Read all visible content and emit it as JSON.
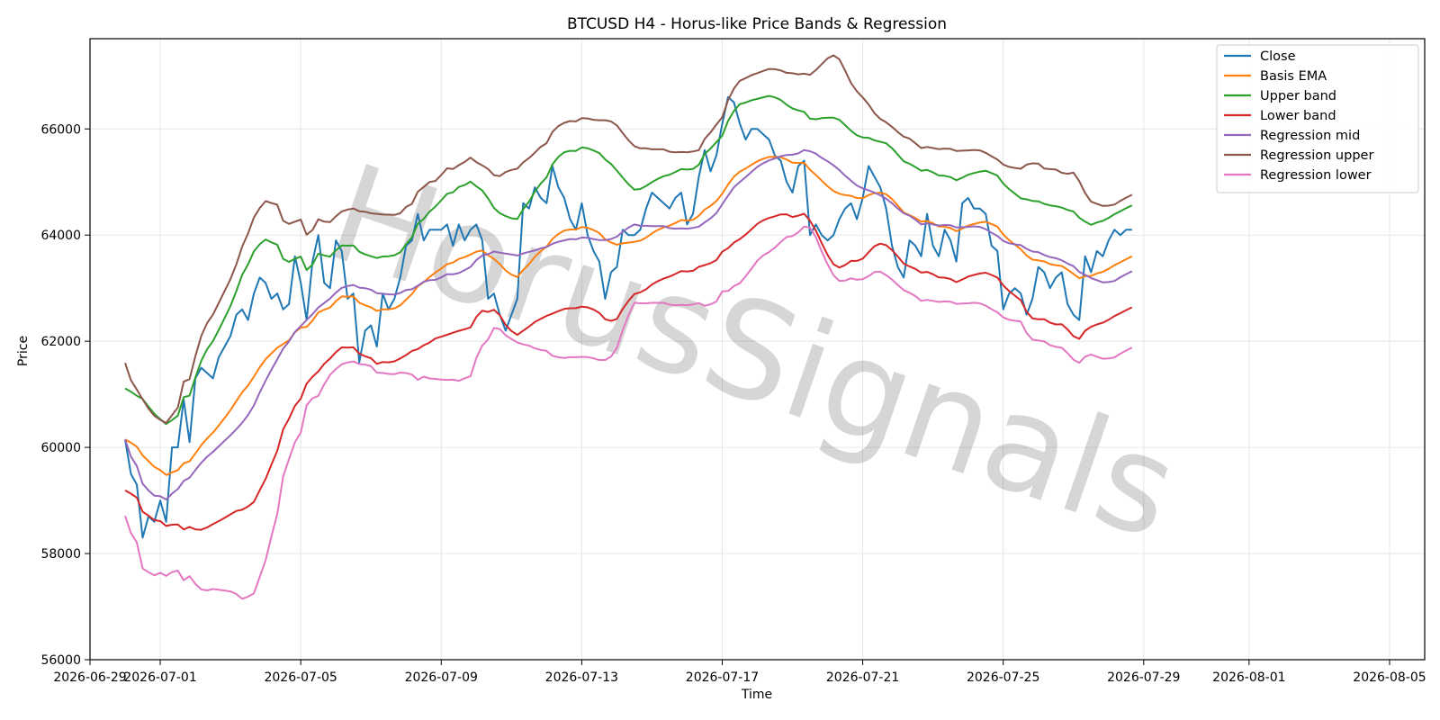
{
  "chart_data": {
    "type": "line",
    "title": "BTCUSD H4 - Horus-like Price Bands & Regression",
    "xlabel": "Time",
    "ylabel": "Price",
    "xlim": [
      "2026-06-29",
      "2026-08-06"
    ],
    "ylim": [
      56000,
      67700
    ],
    "grid": true,
    "legend": "top-right",
    "watermark": "HorusSignals",
    "x_ticks": [
      {
        "date": "2026-06-29",
        "label": "2026-06-29"
      },
      {
        "date": "2026-07-01",
        "label": "2026-07-01"
      },
      {
        "date": "2026-07-05",
        "label": "2026-07-05"
      },
      {
        "date": "2026-07-09",
        "label": "2026-07-09"
      },
      {
        "date": "2026-07-13",
        "label": "2026-07-13"
      },
      {
        "date": "2026-07-17",
        "label": "2026-07-17"
      },
      {
        "date": "2026-07-21",
        "label": "2026-07-21"
      },
      {
        "date": "2026-07-25",
        "label": "2026-07-25"
      },
      {
        "date": "2026-07-29",
        "label": "2026-07-29"
      },
      {
        "date": "2026-08-01",
        "label": "2026-08-01"
      },
      {
        "date": "2026-08-05",
        "label": "2026-08-05"
      }
    ],
    "y_ticks": [
      56000,
      58000,
      60000,
      62000,
      64000,
      66000
    ],
    "series": [
      {
        "name": "Close",
        "color": "#1f77b4",
        "points": [
          [
            "2026-06-30 00:00",
            60150
          ],
          [
            "2026-06-30 04:00",
            59500
          ],
          [
            "2026-06-30 08:00",
            59300
          ],
          [
            "2026-06-30 12:00",
            58300
          ],
          [
            "2026-06-30 16:00",
            58700
          ],
          [
            "2026-06-30 20:00",
            58600
          ],
          [
            "2026-07-01 00:00",
            59000
          ],
          [
            "2026-07-01 04:00",
            58600
          ],
          [
            "2026-07-01 08:00",
            60000
          ],
          [
            "2026-07-01 12:00",
            60000
          ],
          [
            "2026-07-01 16:00",
            60900
          ],
          [
            "2026-07-01 20:00",
            60100
          ],
          [
            "2026-07-02 00:00",
            61300
          ],
          [
            "2026-07-02 04:00",
            61500
          ],
          [
            "2026-07-02 08:00",
            61400
          ],
          [
            "2026-07-02 12:00",
            61300
          ],
          [
            "2026-07-02 16:00",
            61700
          ],
          [
            "2026-07-02 20:00",
            61900
          ],
          [
            "2026-07-03 00:00",
            62100
          ],
          [
            "2026-07-03 04:00",
            62500
          ],
          [
            "2026-07-03 08:00",
            62600
          ],
          [
            "2026-07-03 12:00",
            62400
          ],
          [
            "2026-07-03 16:00",
            62900
          ],
          [
            "2026-07-03 20:00",
            63200
          ],
          [
            "2026-07-04 00:00",
            63100
          ],
          [
            "2026-07-04 04:00",
            62800
          ],
          [
            "2026-07-04 08:00",
            62900
          ],
          [
            "2026-07-04 12:00",
            62600
          ],
          [
            "2026-07-04 16:00",
            62700
          ],
          [
            "2026-07-04 20:00",
            63600
          ],
          [
            "2026-07-05 00:00",
            63100
          ],
          [
            "2026-07-05 04:00",
            62400
          ],
          [
            "2026-07-05 08:00",
            63500
          ],
          [
            "2026-07-05 12:00",
            64000
          ],
          [
            "2026-07-05 16:00",
            63100
          ],
          [
            "2026-07-05 20:00",
            63000
          ],
          [
            "2026-07-06 00:00",
            63900
          ],
          [
            "2026-07-06 04:00",
            63700
          ],
          [
            "2026-07-06 08:00",
            62800
          ],
          [
            "2026-07-06 12:00",
            62900
          ],
          [
            "2026-07-06 16:00",
            61600
          ],
          [
            "2026-07-06 20:00",
            62200
          ],
          [
            "2026-07-07 00:00",
            62300
          ],
          [
            "2026-07-07 04:00",
            61900
          ],
          [
            "2026-07-07 08:00",
            62900
          ],
          [
            "2026-07-07 12:00",
            62600
          ],
          [
            "2026-07-07 16:00",
            62800
          ],
          [
            "2026-07-07 20:00",
            63200
          ],
          [
            "2026-07-08 00:00",
            63800
          ],
          [
            "2026-07-08 04:00",
            63900
          ],
          [
            "2026-07-08 08:00",
            64400
          ],
          [
            "2026-07-08 12:00",
            63900
          ],
          [
            "2026-07-08 16:00",
            64100
          ],
          [
            "2026-07-08 20:00",
            64100
          ],
          [
            "2026-07-09 00:00",
            64100
          ],
          [
            "2026-07-09 04:00",
            64200
          ],
          [
            "2026-07-09 08:00",
            63800
          ],
          [
            "2026-07-09 12:00",
            64200
          ],
          [
            "2026-07-09 16:00",
            63900
          ],
          [
            "2026-07-09 20:00",
            64100
          ],
          [
            "2026-07-10 00:00",
            64200
          ],
          [
            "2026-07-10 04:00",
            63900
          ],
          [
            "2026-07-10 08:00",
            62800
          ],
          [
            "2026-07-10 12:00",
            62900
          ],
          [
            "2026-07-10 16:00",
            62500
          ],
          [
            "2026-07-10 20:00",
            62200
          ],
          [
            "2026-07-11 00:00",
            62500
          ],
          [
            "2026-07-11 04:00",
            62800
          ],
          [
            "2026-07-11 08:00",
            64600
          ],
          [
            "2026-07-11 12:00",
            64500
          ],
          [
            "2026-07-11 16:00",
            64900
          ],
          [
            "2026-07-11 20:00",
            64700
          ],
          [
            "2026-07-12 00:00",
            64600
          ],
          [
            "2026-07-12 04:00",
            65300
          ],
          [
            "2026-07-12 08:00",
            64900
          ],
          [
            "2026-07-12 12:00",
            64700
          ],
          [
            "2026-07-12 16:00",
            64300
          ],
          [
            "2026-07-12 20:00",
            64100
          ],
          [
            "2026-07-13 00:00",
            64600
          ],
          [
            "2026-07-13 04:00",
            64000
          ],
          [
            "2026-07-13 08:00",
            63700
          ],
          [
            "2026-07-13 12:00",
            63500
          ],
          [
            "2026-07-13 16:00",
            62800
          ],
          [
            "2026-07-13 20:00",
            63300
          ],
          [
            "2026-07-14 00:00",
            63400
          ],
          [
            "2026-07-14 04:00",
            64100
          ],
          [
            "2026-07-14 08:00",
            64000
          ],
          [
            "2026-07-14 12:00",
            64000
          ],
          [
            "2026-07-14 16:00",
            64100
          ],
          [
            "2026-07-14 20:00",
            64500
          ],
          [
            "2026-07-15 00:00",
            64800
          ],
          [
            "2026-07-15 04:00",
            64700
          ],
          [
            "2026-07-15 08:00",
            64600
          ],
          [
            "2026-07-15 12:00",
            64500
          ],
          [
            "2026-07-15 16:00",
            64700
          ],
          [
            "2026-07-15 20:00",
            64800
          ],
          [
            "2026-07-16 00:00",
            64200
          ],
          [
            "2026-07-16 04:00",
            64400
          ],
          [
            "2026-07-16 08:00",
            65100
          ],
          [
            "2026-07-16 12:00",
            65600
          ],
          [
            "2026-07-16 16:00",
            65200
          ],
          [
            "2026-07-16 20:00",
            65500
          ],
          [
            "2026-07-17 00:00",
            66100
          ],
          [
            "2026-07-17 04:00",
            66600
          ],
          [
            "2026-07-17 08:00",
            66500
          ],
          [
            "2026-07-17 12:00",
            66100
          ],
          [
            "2026-07-17 16:00",
            65800
          ],
          [
            "2026-07-17 20:00",
            66000
          ],
          [
            "2026-07-18 00:00",
            66000
          ],
          [
            "2026-07-18 04:00",
            65900
          ],
          [
            "2026-07-18 08:00",
            65800
          ],
          [
            "2026-07-18 12:00",
            65500
          ],
          [
            "2026-07-18 16:00",
            65400
          ],
          [
            "2026-07-18 20:00",
            65000
          ],
          [
            "2026-07-19 00:00",
            64800
          ],
          [
            "2026-07-19 04:00",
            65300
          ],
          [
            "2026-07-19 08:00",
            65400
          ],
          [
            "2026-07-19 12:00",
            64000
          ],
          [
            "2026-07-19 16:00",
            64200
          ],
          [
            "2026-07-19 20:00",
            64000
          ],
          [
            "2026-07-20 00:00",
            63900
          ],
          [
            "2026-07-20 04:00",
            64000
          ],
          [
            "2026-07-20 08:00",
            64300
          ],
          [
            "2026-07-20 12:00",
            64500
          ],
          [
            "2026-07-20 16:00",
            64600
          ],
          [
            "2026-07-20 20:00",
            64300
          ],
          [
            "2026-07-21 00:00",
            64700
          ],
          [
            "2026-07-21 04:00",
            65300
          ],
          [
            "2026-07-21 08:00",
            65100
          ],
          [
            "2026-07-21 12:00",
            64900
          ],
          [
            "2026-07-21 16:00",
            64500
          ],
          [
            "2026-07-21 20:00",
            63800
          ],
          [
            "2026-07-22 00:00",
            63400
          ],
          [
            "2026-07-22 04:00",
            63200
          ],
          [
            "2026-07-22 08:00",
            63900
          ],
          [
            "2026-07-22 12:00",
            63800
          ],
          [
            "2026-07-22 16:00",
            63600
          ],
          [
            "2026-07-22 20:00",
            64400
          ],
          [
            "2026-07-23 00:00",
            63800
          ],
          [
            "2026-07-23 04:00",
            63600
          ],
          [
            "2026-07-23 08:00",
            64100
          ],
          [
            "2026-07-23 12:00",
            63900
          ],
          [
            "2026-07-23 16:00",
            63500
          ],
          [
            "2026-07-23 20:00",
            64600
          ],
          [
            "2026-07-24 00:00",
            64700
          ],
          [
            "2026-07-24 04:00",
            64500
          ],
          [
            "2026-07-24 08:00",
            64500
          ],
          [
            "2026-07-24 12:00",
            64400
          ],
          [
            "2026-07-24 16:00",
            63800
          ],
          [
            "2026-07-24 20:00",
            63700
          ],
          [
            "2026-07-25 00:00",
            62600
          ],
          [
            "2026-07-25 04:00",
            62900
          ],
          [
            "2026-07-25 08:00",
            63000
          ],
          [
            "2026-07-25 12:00",
            62900
          ],
          [
            "2026-07-25 16:00",
            62500
          ],
          [
            "2026-07-25 20:00",
            62800
          ],
          [
            "2026-07-26 00:00",
            63400
          ],
          [
            "2026-07-26 04:00",
            63300
          ],
          [
            "2026-07-26 08:00",
            63000
          ],
          [
            "2026-07-26 12:00",
            63200
          ],
          [
            "2026-07-26 16:00",
            63300
          ],
          [
            "2026-07-26 20:00",
            62700
          ],
          [
            "2026-07-27 00:00",
            62500
          ],
          [
            "2026-07-27 04:00",
            62400
          ],
          [
            "2026-07-27 08:00",
            63600
          ],
          [
            "2026-07-27 12:00",
            63300
          ],
          [
            "2026-07-27 16:00",
            63700
          ],
          [
            "2026-07-27 20:00",
            63600
          ],
          [
            "2026-07-28 00:00",
            63900
          ],
          [
            "2026-07-28 04:00",
            64100
          ],
          [
            "2026-07-28 08:00",
            64000
          ],
          [
            "2026-07-28 12:00",
            64100
          ],
          [
            "2026-07-28 16:00",
            64100
          ]
        ]
      },
      {
        "name": "Basis EMA",
        "color": "#ff7f0e",
        "points": []
      },
      {
        "name": "Upper band",
        "color": "#2ca02c",
        "points": []
      },
      {
        "name": "Lower band",
        "color": "#d62728",
        "points": []
      },
      {
        "name": "Regression mid",
        "color": "#9467bd",
        "points": []
      },
      {
        "name": "Regression upper",
        "color": "#8c564b",
        "points": []
      },
      {
        "name": "Regression lower",
        "color": "#e377c2",
        "points": []
      }
    ]
  }
}
